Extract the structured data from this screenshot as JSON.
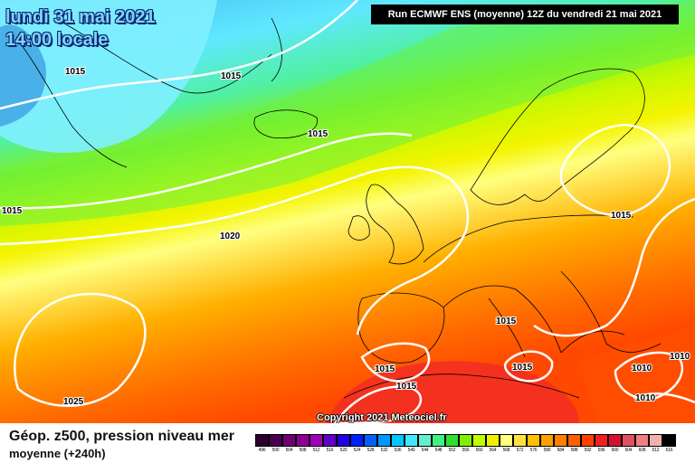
{
  "header": {
    "date": "lundi 31 mai 2021",
    "time": "14:00 locale",
    "run": "Run ECMWF ENS (moyenne) 12Z du vendredi 21 mai 2021"
  },
  "copyright": "Copyright 2021 Meteociel.fr",
  "isobars": [
    {
      "label": "1015"
    },
    {
      "label": "1015"
    },
    {
      "label": "1015"
    },
    {
      "label": "1015"
    },
    {
      "label": "1020"
    },
    {
      "label": "1015"
    },
    {
      "label": "1015"
    },
    {
      "label": "1015"
    },
    {
      "label": "1015"
    },
    {
      "label": "1015"
    },
    {
      "label": "1010"
    },
    {
      "label": "1010"
    },
    {
      "label": "1010"
    },
    {
      "label": "1025"
    }
  ],
  "legend": {
    "title": "Géop. z500, pression niveau mer",
    "subtitle": "moyenne   (+240h)",
    "scale": [
      {
        "value": "496",
        "color": "#2a0030"
      },
      {
        "value": "500",
        "color": "#4a0050"
      },
      {
        "value": "504",
        "color": "#700070"
      },
      {
        "value": "508",
        "color": "#900090"
      },
      {
        "value": "512",
        "color": "#a000b8"
      },
      {
        "value": "516",
        "color": "#6000c8"
      },
      {
        "value": "520",
        "color": "#2000e0"
      },
      {
        "value": "524",
        "color": "#0020ff"
      },
      {
        "value": "528",
        "color": "#0060ff"
      },
      {
        "value": "532",
        "color": "#0098ff"
      },
      {
        "value": "536",
        "color": "#00c8ff"
      },
      {
        "value": "540",
        "color": "#40e8ff"
      },
      {
        "value": "544",
        "color": "#60f0d0"
      },
      {
        "value": "548",
        "color": "#40f080"
      },
      {
        "value": "552",
        "color": "#30e030"
      },
      {
        "value": "556",
        "color": "#80f000"
      },
      {
        "value": "560",
        "color": "#c0ff00"
      },
      {
        "value": "564",
        "color": "#f0f000"
      },
      {
        "value": "568",
        "color": "#ffff80"
      },
      {
        "value": "572",
        "color": "#ffe040"
      },
      {
        "value": "576",
        "color": "#ffc000"
      },
      {
        "value": "580",
        "color": "#ffa000"
      },
      {
        "value": "584",
        "color": "#ff8000"
      },
      {
        "value": "588",
        "color": "#ff6000"
      },
      {
        "value": "592",
        "color": "#ff4000"
      },
      {
        "value": "596",
        "color": "#f02020"
      },
      {
        "value": "600",
        "color": "#d81030"
      },
      {
        "value": "604",
        "color": "#e05060"
      },
      {
        "value": "608",
        "color": "#f08080"
      },
      {
        "value": "612",
        "color": "#f0b0b0"
      },
      {
        "value": "616",
        "color": "#000000"
      }
    ]
  }
}
